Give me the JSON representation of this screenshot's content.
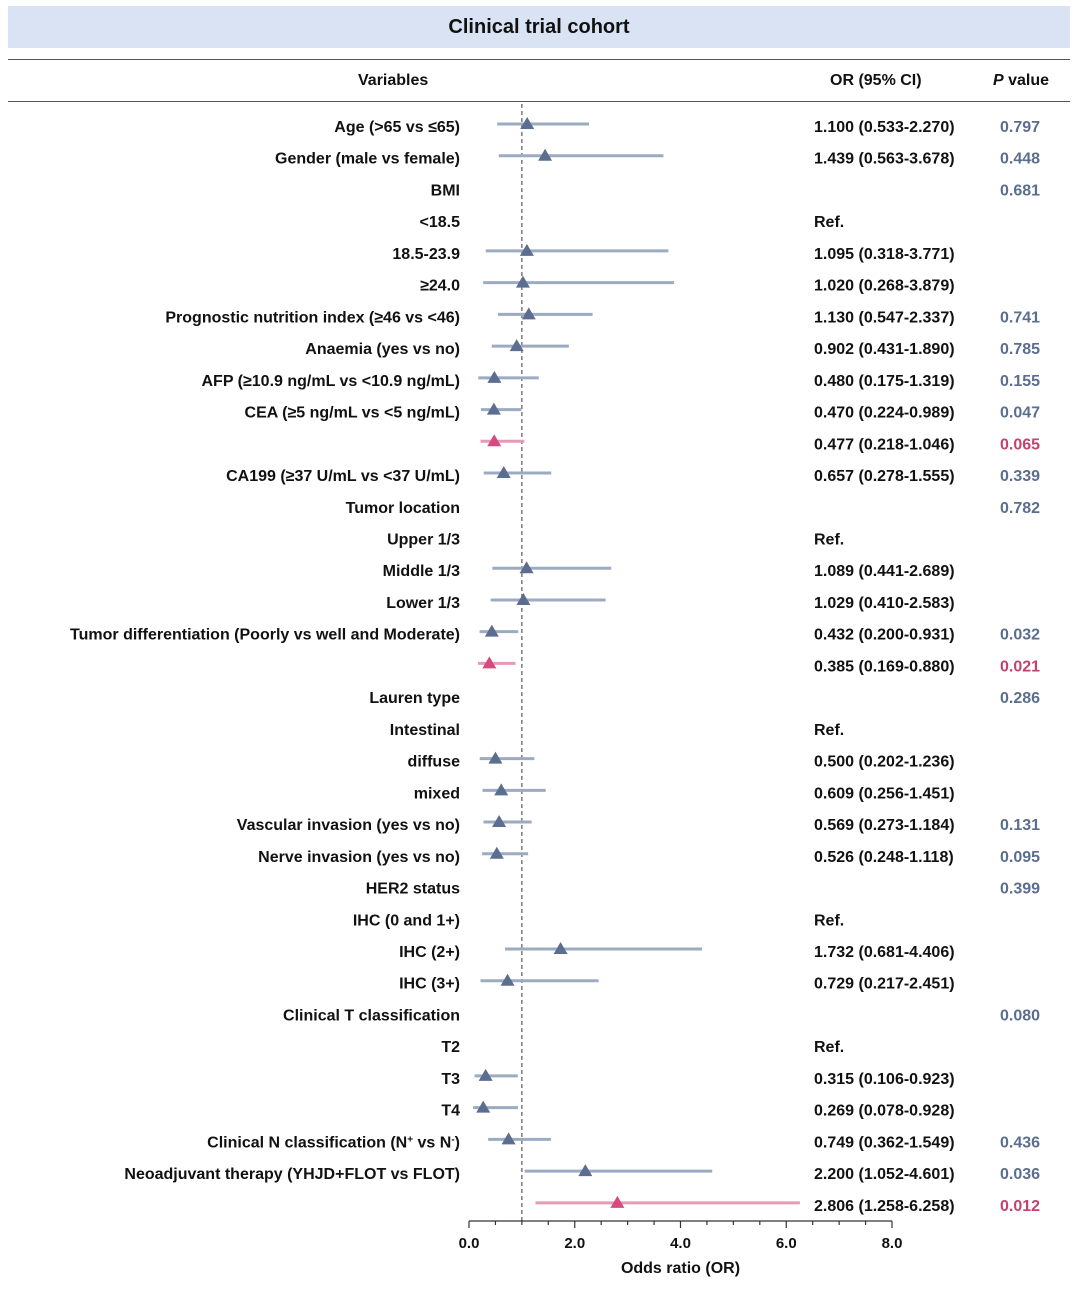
{
  "title": "Clinical trial cohort",
  "headers": {
    "variables": "Variables",
    "or_ci": "OR (95% CI)",
    "p_value_italic": "P",
    "p_value_rest": " value"
  },
  "colors": {
    "normal_marker": "#5b6e8f",
    "normal_line": "#9dabc2",
    "highlight_marker": "#d64a80",
    "highlight_line": "#e59ab8",
    "normal_p": "#5b6e8f",
    "highlight_p": "#c2436e",
    "banner": "#d9e3f3"
  },
  "chart_data": {
    "type": "forest",
    "xlabel": "Odds ratio (OR)",
    "xlim": [
      0,
      8
    ],
    "xticks": [
      0,
      2,
      4,
      6,
      8
    ],
    "xtick_labels": [
      "0.0",
      "2.0",
      "4.0",
      "6.0",
      "8.0"
    ],
    "reference_line": 1,
    "rows": [
      {
        "label": "Age (>65 vs ≤65)",
        "or": 1.1,
        "lower": 0.533,
        "upper": 2.27,
        "or_text": "1.100 (0.533-2.270)",
        "p": "0.797",
        "highlight": false
      },
      {
        "label": "Gender (male vs female)",
        "or": 1.439,
        "lower": 0.563,
        "upper": 3.678,
        "or_text": "1.439 (0.563-3.678)",
        "p": "0.448",
        "highlight": false
      },
      {
        "label": "BMI",
        "or": null,
        "or_text": "",
        "p": "0.681",
        "highlight": false
      },
      {
        "label": "<18.5",
        "or": null,
        "or_text": "Ref.",
        "p": "",
        "highlight": false
      },
      {
        "label": "18.5-23.9",
        "or": 1.095,
        "lower": 0.318,
        "upper": 3.771,
        "or_text": "1.095 (0.318-3.771)",
        "p": "",
        "highlight": false
      },
      {
        "label": "≥24.0",
        "or": 1.02,
        "lower": 0.268,
        "upper": 3.879,
        "or_text": "1.020 (0.268-3.879)",
        "p": "",
        "highlight": false
      },
      {
        "label": "Prognostic nutrition index (≥46 vs <46)",
        "or": 1.13,
        "lower": 0.547,
        "upper": 2.337,
        "or_text": "1.130 (0.547-2.337)",
        "p": "0.741",
        "highlight": false
      },
      {
        "label": "Anaemia (yes vs no)",
        "or": 0.902,
        "lower": 0.431,
        "upper": 1.89,
        "or_text": "0.902 (0.431-1.890)",
        "p": "0.785",
        "highlight": false
      },
      {
        "label": "AFP (≥10.9 ng/mL vs <10.9 ng/mL)",
        "or": 0.48,
        "lower": 0.175,
        "upper": 1.319,
        "or_text": "0.480 (0.175-1.319)",
        "p": "0.155",
        "highlight": false
      },
      {
        "label": "CEA (≥5 ng/mL vs <5 ng/mL)",
        "or": 0.47,
        "lower": 0.224,
        "upper": 0.989,
        "or_text": "0.470 (0.224-0.989)",
        "p": "0.047",
        "highlight": false
      },
      {
        "label": "",
        "or": 0.477,
        "lower": 0.218,
        "upper": 1.046,
        "or_text": "0.477 (0.218-1.046)",
        "p": "0.065",
        "highlight": true
      },
      {
        "label": "CA199 (≥37 U/mL vs <37 U/mL)",
        "or": 0.657,
        "lower": 0.278,
        "upper": 1.555,
        "or_text": "0.657 (0.278-1.555)",
        "p": "0.339",
        "highlight": false
      },
      {
        "label": "Tumor location",
        "or": null,
        "or_text": "",
        "p": "0.782",
        "highlight": false
      },
      {
        "label": "Upper 1/3",
        "or": null,
        "or_text": "Ref.",
        "p": "",
        "highlight": false
      },
      {
        "label": "Middle 1/3",
        "or": 1.089,
        "lower": 0.441,
        "upper": 2.689,
        "or_text": "1.089 (0.441-2.689)",
        "p": "",
        "highlight": false
      },
      {
        "label": "Lower 1/3",
        "or": 1.029,
        "lower": 0.41,
        "upper": 2.583,
        "or_text": "1.029 (0.410-2.583)",
        "p": "",
        "highlight": false
      },
      {
        "label": "Tumor differentiation (Poorly vs well and Moderate)",
        "or": 0.432,
        "lower": 0.2,
        "upper": 0.931,
        "or_text": "0.432 (0.200-0.931)",
        "p": "0.032",
        "highlight": false
      },
      {
        "label": "",
        "or": 0.385,
        "lower": 0.169,
        "upper": 0.88,
        "or_text": "0.385 (0.169-0.880)",
        "p": "0.021",
        "highlight": true
      },
      {
        "label": "Lauren type",
        "or": null,
        "or_text": "",
        "p": "0.286",
        "highlight": false
      },
      {
        "label": "Intestinal",
        "or": null,
        "or_text": "Ref.",
        "p": "",
        "highlight": false
      },
      {
        "label": "diffuse",
        "or": 0.5,
        "lower": 0.202,
        "upper": 1.236,
        "or_text": "0.500 (0.202-1.236)",
        "p": "",
        "highlight": false
      },
      {
        "label": "mixed",
        "or": 0.609,
        "lower": 0.256,
        "upper": 1.451,
        "or_text": "0.609 (0.256-1.451)",
        "p": "",
        "highlight": false
      },
      {
        "label": "Vascular invasion (yes vs no)",
        "or": 0.569,
        "lower": 0.273,
        "upper": 1.184,
        "or_text": "0.569 (0.273-1.184)",
        "p": "0.131",
        "highlight": false
      },
      {
        "label": "Nerve invasion (yes vs no)",
        "or": 0.526,
        "lower": 0.248,
        "upper": 1.118,
        "or_text": "0.526 (0.248-1.118)",
        "p": "0.095",
        "highlight": false
      },
      {
        "label": "HER2 status",
        "or": null,
        "or_text": "",
        "p": "0.399",
        "highlight": false
      },
      {
        "label": "IHC (0 and 1+)",
        "or": null,
        "or_text": "Ref.",
        "p": "",
        "highlight": false
      },
      {
        "label": "IHC (2+)",
        "or": 1.732,
        "lower": 0.681,
        "upper": 4.406,
        "or_text": "1.732 (0.681-4.406)",
        "p": "",
        "highlight": false
      },
      {
        "label": "IHC (3+)",
        "or": 0.729,
        "lower": 0.217,
        "upper": 2.451,
        "or_text": "0.729 (0.217-2.451)",
        "p": "",
        "highlight": false
      },
      {
        "label": "Clinical T classification",
        "or": null,
        "or_text": "",
        "p": "0.080",
        "highlight": false
      },
      {
        "label": "T2",
        "or": null,
        "or_text": "Ref.",
        "p": "",
        "highlight": false
      },
      {
        "label": "T3",
        "or": 0.315,
        "lower": 0.106,
        "upper": 0.923,
        "or_text": "0.315 (0.106-0.923)",
        "p": "",
        "highlight": false
      },
      {
        "label": "T4",
        "or": 0.269,
        "lower": 0.078,
        "upper": 0.928,
        "or_text": "0.269 (0.078-0.928)",
        "p": "",
        "highlight": false
      },
      {
        "label": "Clinical N classification (N⁺ vs N⁻)",
        "or": 0.749,
        "lower": 0.362,
        "upper": 1.549,
        "or_text": "0.749 (0.362-1.549)",
        "p": "0.436",
        "highlight": false
      },
      {
        "label": "Neoadjuvant therapy (YHJD+FLOT vs FLOT)",
        "or": 2.2,
        "lower": 1.052,
        "upper": 4.601,
        "or_text": "2.200 (1.052-4.601)",
        "p": "0.036",
        "highlight": false
      },
      {
        "label": "",
        "or": 2.806,
        "lower": 1.258,
        "upper": 6.258,
        "or_text": "2.806 (1.258-6.258)",
        "p": "0.012",
        "highlight": true
      }
    ]
  }
}
